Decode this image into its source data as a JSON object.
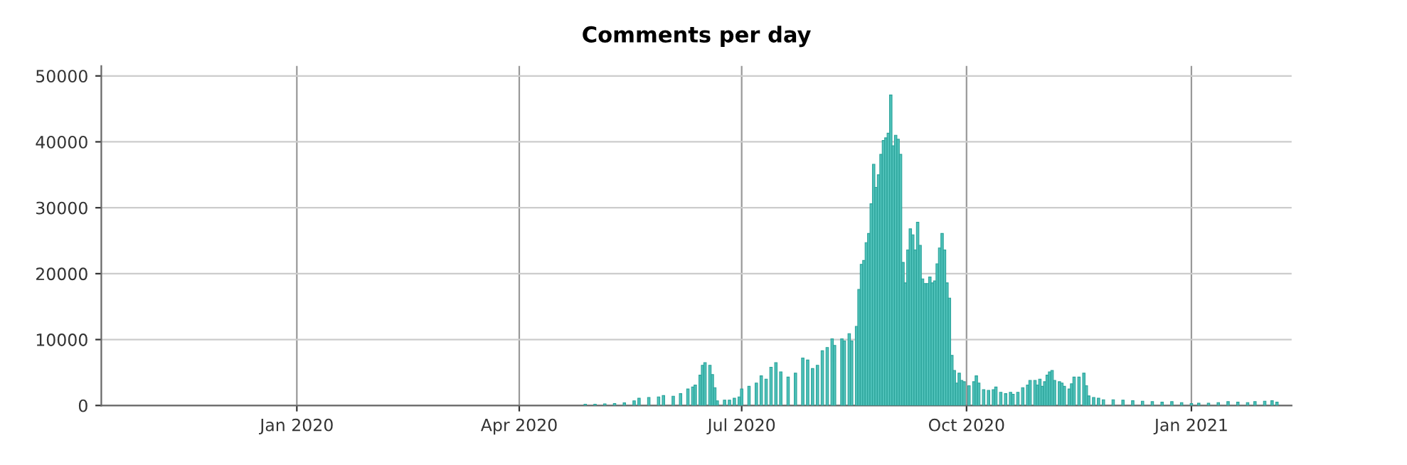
{
  "chart_data": {
    "type": "bar",
    "title": "Comments per day",
    "color": "#4fc1b9",
    "x": [
      "2020-04-28",
      "2020-05-02",
      "2020-05-06",
      "2020-05-10",
      "2020-05-14",
      "2020-05-18",
      "2020-05-20",
      "2020-05-24",
      "2020-05-28",
      "2020-05-30",
      "2020-06-03",
      "2020-06-06",
      "2020-06-09",
      "2020-06-11",
      "2020-06-12",
      "2020-06-14",
      "2020-06-15",
      "2020-06-16",
      "2020-06-18",
      "2020-06-19",
      "2020-06-20",
      "2020-06-21",
      "2020-06-24",
      "2020-06-26",
      "2020-06-28",
      "2020-06-30",
      "2020-07-01",
      "2020-07-04",
      "2020-07-07",
      "2020-07-09",
      "2020-07-11",
      "2020-07-13",
      "2020-07-15",
      "2020-07-17",
      "2020-07-20",
      "2020-07-23",
      "2020-07-26",
      "2020-07-28",
      "2020-07-30",
      "2020-08-01",
      "2020-08-03",
      "2020-08-05",
      "2020-08-07",
      "2020-08-08",
      "2020-08-11",
      "2020-08-12",
      "2020-08-14",
      "2020-08-15",
      "2020-08-17",
      "2020-08-18",
      "2020-08-19",
      "2020-08-20",
      "2020-08-21",
      "2020-08-22",
      "2020-08-23",
      "2020-08-24",
      "2020-08-25",
      "2020-08-26",
      "2020-08-27",
      "2020-08-28",
      "2020-08-29",
      "2020-08-30",
      "2020-08-31",
      "2020-09-01",
      "2020-09-02",
      "2020-09-03",
      "2020-09-04",
      "2020-09-05",
      "2020-09-06",
      "2020-09-07",
      "2020-09-08",
      "2020-09-09",
      "2020-09-10",
      "2020-09-11",
      "2020-09-12",
      "2020-09-13",
      "2020-09-14",
      "2020-09-15",
      "2020-09-16",
      "2020-09-17",
      "2020-09-18",
      "2020-09-19",
      "2020-09-20",
      "2020-09-21",
      "2020-09-22",
      "2020-09-23",
      "2020-09-24",
      "2020-09-25",
      "2020-09-26",
      "2020-09-27",
      "2020-09-28",
      "2020-09-29",
      "2020-09-30",
      "2020-10-02",
      "2020-10-04",
      "2020-10-05",
      "2020-10-06",
      "2020-10-08",
      "2020-10-10",
      "2020-10-12",
      "2020-10-13",
      "2020-10-15",
      "2020-10-17",
      "2020-10-19",
      "2020-10-20",
      "2020-10-22",
      "2020-10-24",
      "2020-10-26",
      "2020-10-27",
      "2020-10-29",
      "2020-10-30",
      "2020-10-31",
      "2020-11-01",
      "2020-11-02",
      "2020-11-03",
      "2020-11-04",
      "2020-11-05",
      "2020-11-06",
      "2020-11-08",
      "2020-11-09",
      "2020-11-10",
      "2020-11-12",
      "2020-11-13",
      "2020-11-14",
      "2020-11-16",
      "2020-11-18",
      "2020-11-19",
      "2020-11-20",
      "2020-11-22",
      "2020-11-24",
      "2020-11-26",
      "2020-11-30",
      "2020-12-04",
      "2020-12-08",
      "2020-12-12",
      "2020-12-16",
      "2020-12-20",
      "2020-12-24",
      "2020-12-28",
      "2021-01-01",
      "2021-01-04",
      "2021-01-08",
      "2021-01-12",
      "2021-01-16",
      "2021-01-20",
      "2021-01-24",
      "2021-01-27",
      "2021-01-31",
      "2021-02-03",
      "2021-02-05"
    ],
    "values": [
      200,
      200,
      250,
      300,
      400,
      700,
      1100,
      1200,
      1300,
      1500,
      1400,
      1800,
      2500,
      2800,
      3100,
      4600,
      6100,
      6500,
      6100,
      4700,
      2700,
      700,
      800,
      800,
      1100,
      1300,
      2500,
      2900,
      3400,
      4500,
      4000,
      5800,
      6500,
      5100,
      4300,
      4900,
      7200,
      6900,
      5600,
      6100,
      8300,
      8800,
      10100,
      9100,
      10100,
      9800,
      10900,
      9800,
      12000,
      17600,
      21400,
      22000,
      24700,
      26100,
      30600,
      36600,
      33100,
      35000,
      38100,
      40200,
      40600,
      41300,
      47100,
      39400,
      41000,
      40400,
      38100,
      21700,
      18600,
      23600,
      26800,
      25900,
      23600,
      27800,
      24300,
      19200,
      18500,
      18500,
      19500,
      18600,
      18900,
      21500,
      23900,
      26100,
      23600,
      18600,
      16300,
      7600,
      5300,
      3400,
      4900,
      3800,
      3600,
      3000,
      3600,
      4500,
      3400,
      2400,
      2300,
      2400,
      2800,
      2000,
      1800,
      2000,
      1700,
      2000,
      2700,
      3100,
      3800,
      3800,
      3100,
      4000,
      2900,
      3600,
      4600,
      5100,
      5300,
      3800,
      3600,
      3400,
      2900,
      2500,
      3300,
      4300,
      4300,
      4900,
      3000,
      1450,
      1200,
      1100,
      870,
      870,
      800,
      720,
      650,
      580,
      500,
      580,
      430,
      290,
      360,
      360,
      430,
      580,
      500,
      430,
      580,
      650,
      720,
      500
    ],
    "xlim": [
      "2019-10-13",
      "2021-02-11"
    ],
    "xticks": [
      {
        "value": "2020-01-01",
        "label": "Jan 2020"
      },
      {
        "value": "2020-04-01",
        "label": "Apr 2020"
      },
      {
        "value": "2020-07-01",
        "label": "Jul 2020"
      },
      {
        "value": "2020-10-01",
        "label": "Oct 2020"
      },
      {
        "value": "2021-01-01",
        "label": "Jan 2021"
      }
    ],
    "ylim": [
      0,
      51500
    ],
    "yticks": [
      0,
      10000,
      20000,
      30000,
      40000,
      50000
    ],
    "grid": true
  }
}
